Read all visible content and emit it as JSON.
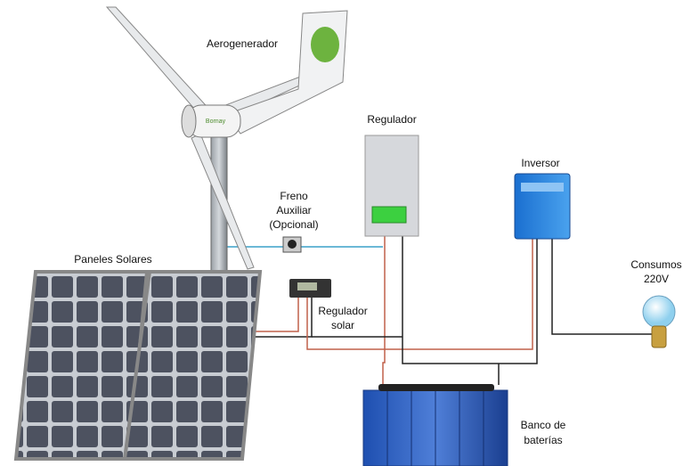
{
  "nodes": [
    {
      "lines": [
        "Aerogenerador"
      ]
    },
    {
      "lines": [
        "Regulador"
      ]
    },
    {
      "lines": [
        "Inversor"
      ]
    },
    {
      "lines": [
        "Freno",
        "Auxiliar",
        "(Opcional)"
      ]
    },
    {
      "lines": [
        "Paneles Solares"
      ]
    },
    {
      "lines": [
        "Regulador",
        "solar"
      ]
    },
    {
      "lines": [
        "Consumos",
        "220V"
      ]
    },
    {
      "lines": [
        "Banco de",
        "baterías"
      ]
    }
  ],
  "logo": "Bornay"
}
